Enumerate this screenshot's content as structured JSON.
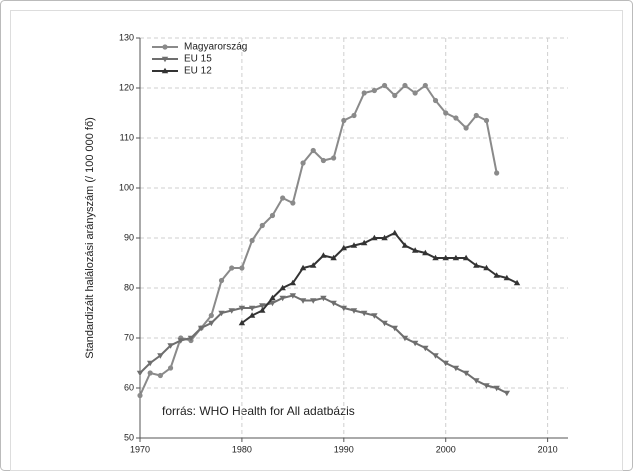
{
  "chart_data": {
    "type": "line",
    "ylabel": "Standardizált halálozási arányszám (/ 100 000 fő)",
    "annotation": "forrás: WHO Health for All adatbázis",
    "xlim": [
      1970,
      2012
    ],
    "xticks": [
      1970,
      1980,
      1990,
      2000,
      2010
    ],
    "ylim": [
      50,
      130
    ],
    "yticks": [
      50,
      60,
      70,
      80,
      90,
      100,
      110,
      120,
      130
    ],
    "grid": true,
    "legend": "upper left",
    "series": [
      {
        "name": "Magyarország",
        "color": "#8a8a8a",
        "marker": "circle",
        "x": [
          1970,
          1971,
          1972,
          1973,
          1974,
          1975,
          1976,
          1977,
          1978,
          1979,
          1980,
          1981,
          1982,
          1983,
          1984,
          1985,
          1986,
          1987,
          1988,
          1989,
          1990,
          1991,
          1992,
          1993,
          1994,
          1995,
          1996,
          1997,
          1998,
          1999,
          2000,
          2001,
          2002,
          2003,
          2004,
          2005
        ],
        "values": [
          58.5,
          63,
          62.5,
          64,
          70,
          69.5,
          72,
          74.5,
          81.5,
          84,
          84,
          89.5,
          92.5,
          94.5,
          98,
          97,
          105,
          107.5,
          105.5,
          106,
          113.5,
          114.5,
          119,
          119.5,
          120.5,
          118.5,
          120.5,
          119,
          120.5,
          117.5,
          115,
          114,
          112,
          114.5,
          113.5,
          103
        ]
      },
      {
        "name": "EU 15",
        "color": "#6e6e6e",
        "marker": "triangle-down",
        "x": [
          1970,
          1971,
          1972,
          1973,
          1974,
          1975,
          1976,
          1977,
          1978,
          1979,
          1980,
          1981,
          1982,
          1983,
          1984,
          1985,
          1986,
          1987,
          1988,
          1989,
          1990,
          1991,
          1992,
          1993,
          1994,
          1995,
          1996,
          1997,
          1998,
          1999,
          2000,
          2001,
          2002,
          2003,
          2004,
          2005,
          2006
        ],
        "values": [
          63,
          65,
          66.5,
          68.5,
          69.5,
          70,
          72,
          73,
          75,
          75.5,
          76,
          76,
          76.5,
          77,
          78,
          78.5,
          77.5,
          77.5,
          78,
          77,
          76,
          75.5,
          75,
          74.5,
          73,
          72,
          70,
          69,
          68,
          66.5,
          65,
          64,
          63,
          61.5,
          60.5,
          60,
          59
        ]
      },
      {
        "name": "EU 12",
        "color": "#333333",
        "marker": "triangle-up",
        "x": [
          1980,
          1981,
          1982,
          1983,
          1984,
          1985,
          1986,
          1987,
          1988,
          1989,
          1990,
          1991,
          1992,
          1993,
          1994,
          1995,
          1996,
          1997,
          1998,
          1999,
          2000,
          2001,
          2002,
          2003,
          2004,
          2005,
          2006,
          2007
        ],
        "values": [
          73,
          74.5,
          75.5,
          78,
          80,
          81,
          84,
          84.5,
          86.5,
          86,
          88,
          88.5,
          89,
          90,
          90,
          91,
          88.5,
          87.5,
          87,
          86,
          86,
          86,
          86,
          84.5,
          84,
          82.5,
          82,
          81
        ]
      }
    ]
  }
}
